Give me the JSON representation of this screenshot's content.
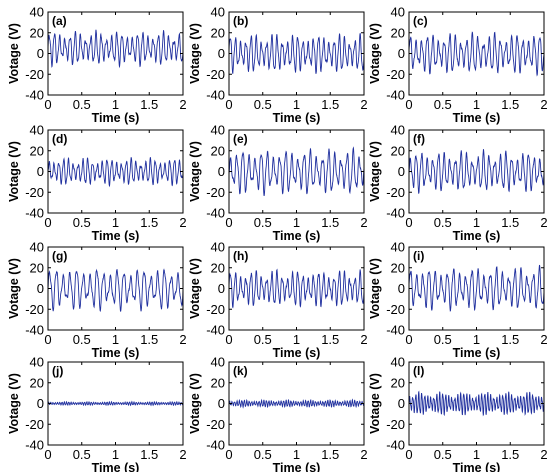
{
  "chart_data": [
    {
      "id": "a",
      "panel_label": "(a)",
      "type": "line",
      "xlabel": "Time (s)",
      "ylabel": "Votage (V)",
      "xlim": [
        0,
        2
      ],
      "ylim": [
        -40,
        40
      ],
      "xticks": [
        "0",
        "0.5",
        "1",
        "1.5",
        "2"
      ],
      "yticks": [
        "40",
        "20",
        "0",
        "-20",
        "-40"
      ],
      "grid": false,
      "series": [
        {
          "color": "#1f2f9e",
          "signal": {
            "amplitude": 15,
            "offset": 5,
            "cycles": 26
          }
        }
      ]
    },
    {
      "id": "b",
      "panel_label": "(b)",
      "type": "line",
      "xlabel": "Time (s)",
      "ylabel": "Votage (V)",
      "xlim": [
        0,
        2
      ],
      "ylim": [
        -40,
        40
      ],
      "xticks": [
        "0",
        "0.5",
        "1",
        "1.5",
        "2"
      ],
      "yticks": [
        "40",
        "20",
        "0",
        "-20",
        "-40"
      ],
      "grid": false,
      "series": [
        {
          "color": "#1f2f9e",
          "signal": {
            "amplitude": 17,
            "offset": 0,
            "cycles": 26
          }
        }
      ]
    },
    {
      "id": "c",
      "panel_label": "(c)",
      "type": "line",
      "xlabel": "Time (s)",
      "ylabel": "Votage (V)",
      "xlim": [
        0,
        2
      ],
      "ylim": [
        -40,
        40
      ],
      "xticks": [
        "0",
        "0.5",
        "1",
        "1.5",
        "2"
      ],
      "yticks": [
        "40",
        "20",
        "0",
        "-20",
        "-40"
      ],
      "grid": false,
      "series": [
        {
          "color": "#1f2f9e",
          "signal": {
            "amplitude": 18,
            "offset": 0,
            "cycles": 24
          }
        }
      ]
    },
    {
      "id": "d",
      "panel_label": "(d)",
      "type": "line",
      "xlabel": "Time (s)",
      "ylabel": "Votage (V)",
      "xlim": [
        0,
        2
      ],
      "ylim": [
        -40,
        40
      ],
      "xticks": [
        "0",
        "0.5",
        "1",
        "1.5",
        "2"
      ],
      "yticks": [
        "40",
        "20",
        "0",
        "-20",
        "-40"
      ],
      "grid": false,
      "series": [
        {
          "color": "#1f2f9e",
          "signal": {
            "amplitude": 12,
            "offset": 0,
            "cycles": 28
          }
        }
      ]
    },
    {
      "id": "e",
      "panel_label": "(e)",
      "type": "line",
      "xlabel": "Time (s)",
      "ylabel": "Votage (V)",
      "xlim": [
        0,
        2
      ],
      "ylim": [
        -40,
        40
      ],
      "xticks": [
        "0",
        "0.5",
        "1",
        "1.5",
        "2"
      ],
      "yticks": [
        "40",
        "20",
        "0",
        "-20",
        "-40"
      ],
      "grid": false,
      "series": [
        {
          "color": "#1f2f9e",
          "signal": {
            "amplitude": 20,
            "offset": 0,
            "cycles": 22
          }
        }
      ]
    },
    {
      "id": "f",
      "panel_label": "(f)",
      "type": "line",
      "xlabel": "Time (s)",
      "ylabel": "Votage (V)",
      "xlim": [
        0,
        2
      ],
      "ylim": [
        -40,
        40
      ],
      "xticks": [
        "0",
        "0.5",
        "1",
        "1.5",
        "2"
      ],
      "yticks": [
        "40",
        "20",
        "0",
        "-20",
        "-40"
      ],
      "grid": false,
      "series": [
        {
          "color": "#1f2f9e",
          "signal": {
            "amplitude": 18,
            "offset": 0,
            "cycles": 24
          }
        }
      ]
    },
    {
      "id": "g",
      "panel_label": "(g)",
      "type": "line",
      "xlabel": "Time (s)",
      "ylabel": "Votage (V)",
      "xlim": [
        0,
        2
      ],
      "ylim": [
        -40,
        40
      ],
      "xticks": [
        "0",
        "0.5",
        "1",
        "1.5",
        "2"
      ],
      "yticks": [
        "40",
        "20",
        "0",
        "-20",
        "-40"
      ],
      "grid": false,
      "series": [
        {
          "color": "#1f2f9e",
          "signal": {
            "amplitude": 19,
            "offset": 0,
            "cycles": 20
          }
        }
      ]
    },
    {
      "id": "h",
      "panel_label": "(h)",
      "type": "line",
      "xlabel": "Time (s)",
      "ylabel": "Votage (V)",
      "xlim": [
        0,
        2
      ],
      "ylim": [
        -40,
        40
      ],
      "xticks": [
        "0",
        "0.5",
        "1",
        "1.5",
        "2"
      ],
      "yticks": [
        "40",
        "20",
        "0",
        "-20",
        "-40"
      ],
      "grid": false,
      "series": [
        {
          "color": "#1f2f9e",
          "signal": {
            "amplitude": 16,
            "offset": 0,
            "cycles": 26
          }
        }
      ]
    },
    {
      "id": "i",
      "panel_label": "(i)",
      "type": "line",
      "xlabel": "Time (s)",
      "ylabel": "Votage (V)",
      "xlim": [
        0,
        2
      ],
      "ylim": [
        -40,
        40
      ],
      "xticks": [
        "0",
        "0.5",
        "1",
        "1.5",
        "2"
      ],
      "yticks": [
        "40",
        "20",
        "0",
        "-20",
        "-40"
      ],
      "grid": false,
      "series": [
        {
          "color": "#1f2f9e",
          "signal": {
            "amplitude": 19,
            "offset": 0,
            "cycles": 22
          }
        }
      ]
    },
    {
      "id": "j",
      "panel_label": "(j)",
      "type": "line",
      "xlabel": "Time (s)",
      "ylabel": "Votage (V)",
      "xlim": [
        0,
        2
      ],
      "ylim": [
        -40,
        40
      ],
      "xticks": [
        "0",
        "0.5",
        "1",
        "1.5",
        "2"
      ],
      "yticks": [
        "40",
        "20",
        "0",
        "-20",
        "-40"
      ],
      "grid": false,
      "series": [
        {
          "color": "#1f2f9e",
          "signal": {
            "amplitude": 1.5,
            "offset": 0,
            "cycles": 60
          }
        }
      ]
    },
    {
      "id": "k",
      "panel_label": "(k)",
      "type": "line",
      "xlabel": "Time (s)",
      "ylabel": "Votage (V)",
      "xlim": [
        0,
        2
      ],
      "ylim": [
        -40,
        40
      ],
      "xticks": [
        "0",
        "0.5",
        "1",
        "1.5",
        "2"
      ],
      "yticks": [
        "40",
        "20",
        "0",
        "-20",
        "-40"
      ],
      "grid": false,
      "series": [
        {
          "color": "#1f2f9e",
          "signal": {
            "amplitude": 3,
            "offset": 0,
            "cycles": 55
          }
        }
      ]
    },
    {
      "id": "l",
      "panel_label": "(l)",
      "type": "line",
      "xlabel": "Time (s)",
      "ylabel": "Votage (V)",
      "xlim": [
        0,
        2
      ],
      "ylim": [
        -40,
        40
      ],
      "xticks": [
        "0",
        "0.5",
        "1",
        "1.5",
        "2"
      ],
      "yticks": [
        "40",
        "20",
        "0",
        "-20",
        "-40"
      ],
      "grid": false,
      "series": [
        {
          "color": "#1f2f9e",
          "signal": {
            "amplitude": 10,
            "offset": 0,
            "cycles": 45
          }
        }
      ]
    }
  ]
}
